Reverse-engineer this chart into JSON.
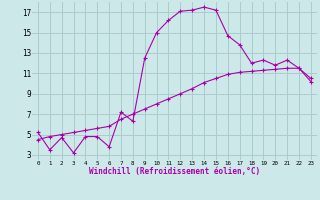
{
  "xlabel": "Windchill (Refroidissement éolien,°C)",
  "xlim": [
    -0.5,
    23.5
  ],
  "ylim": [
    2.5,
    18.0
  ],
  "yticks": [
    3,
    5,
    7,
    9,
    11,
    13,
    15,
    17
  ],
  "xticks": [
    0,
    1,
    2,
    3,
    4,
    5,
    6,
    7,
    8,
    9,
    10,
    11,
    12,
    13,
    14,
    15,
    16,
    17,
    18,
    19,
    20,
    21,
    22,
    23
  ],
  "bg_color": "#cce8e8",
  "grid_color": "#aacccc",
  "line_color": "#aa00aa",
  "curve1_x": [
    0,
    1,
    2,
    3,
    4,
    5,
    6,
    7,
    8,
    9,
    10,
    11,
    12,
    13,
    14,
    15,
    16,
    17,
    18,
    19,
    20,
    21,
    22,
    23
  ],
  "curve1_y": [
    5.2,
    3.5,
    4.7,
    3.2,
    4.8,
    4.8,
    3.8,
    7.2,
    6.3,
    12.5,
    15.0,
    16.2,
    17.1,
    17.2,
    17.5,
    17.2,
    14.7,
    13.8,
    12.0,
    12.3,
    11.8,
    12.3,
    11.5,
    10.5
  ],
  "curve2_x": [
    0,
    1,
    2,
    3,
    4,
    5,
    6,
    7,
    8,
    9,
    10,
    11,
    12,
    13,
    14,
    15,
    16,
    17,
    18,
    19,
    20,
    21,
    22,
    23
  ],
  "curve2_y": [
    4.5,
    4.8,
    5.0,
    5.2,
    5.4,
    5.6,
    5.8,
    6.5,
    7.0,
    7.5,
    8.0,
    8.5,
    9.0,
    9.5,
    10.1,
    10.5,
    10.9,
    11.1,
    11.2,
    11.3,
    11.4,
    11.5,
    11.5,
    10.2
  ]
}
